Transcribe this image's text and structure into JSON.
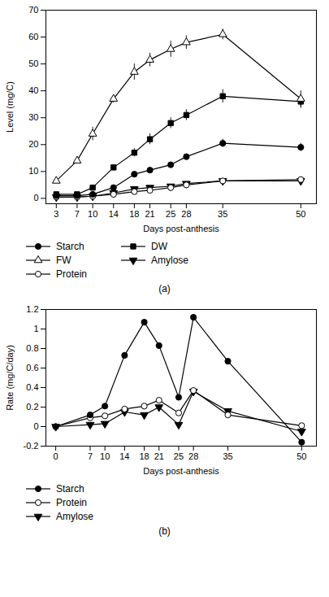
{
  "chart_data": [
    {
      "type": "line",
      "title": "(a)",
      "xlabel": "Days post-anthesis",
      "ylabel": "Level (mg/C)",
      "x": [
        3,
        7,
        10,
        14,
        18,
        21,
        25,
        28,
        35,
        50
      ],
      "series": [
        {
          "name": "Starch",
          "color": "#000000",
          "marker": "circle",
          "values": [
            1.0,
            1.0,
            1.5,
            4.0,
            9.0,
            10.5,
            12.5,
            15.5,
            20.5,
            19.0
          ],
          "errors": [
            0.3,
            0.3,
            0.3,
            0.5,
            0.5,
            0.8,
            0.8,
            1.0,
            1.5,
            1.5
          ]
        },
        {
          "name": "FW",
          "color": "#000000",
          "marker": "open_triangle_up",
          "values": [
            6.5,
            14.0,
            24.0,
            37.0,
            47.0,
            51.5,
            55.5,
            58.0,
            61.0,
            37.0
          ],
          "errors": [
            0.5,
            1.0,
            2.5,
            1.5,
            3.0,
            2.5,
            3.0,
            2.5,
            2.0,
            3.0
          ]
        },
        {
          "name": "Protein",
          "color": "#000000",
          "marker": "open_circle",
          "values": [
            0.5,
            0.5,
            0.8,
            1.5,
            2.5,
            3.0,
            4.0,
            5.0,
            6.5,
            7.0
          ],
          "errors": [
            0.2,
            0.2,
            0.2,
            0.3,
            0.3,
            0.4,
            0.4,
            0.4,
            0.5,
            0.5
          ]
        },
        {
          "name": "DW",
          "color": "#000000",
          "marker": "square",
          "values": [
            1.5,
            1.5,
            4.0,
            11.5,
            17.0,
            22.0,
            28.0,
            31.0,
            38.0,
            36.0
          ],
          "errors": [
            0.3,
            0.3,
            0.8,
            1.0,
            1.5,
            2.0,
            2.0,
            2.0,
            2.5,
            2.5
          ]
        },
        {
          "name": "Amylose",
          "color": "#000000",
          "marker": "triangle_down",
          "values": [
            0.5,
            0.5,
            0.8,
            2.0,
            3.5,
            4.0,
            4.5,
            5.5,
            6.5,
            6.5
          ],
          "errors": [
            0.2,
            0.2,
            0.2,
            0.3,
            0.3,
            0.3,
            0.3,
            0.4,
            0.5,
            0.5
          ]
        }
      ],
      "xlim": [
        1,
        53
      ],
      "ylim": [
        -2,
        70
      ],
      "xticks": [
        3,
        7,
        10,
        14,
        18,
        21,
        25,
        28,
        35,
        50
      ],
      "yticks": [
        0,
        10,
        20,
        30,
        40,
        50,
        60,
        70
      ],
      "grid": false,
      "legend": "bottom"
    },
    {
      "type": "line",
      "title": "(b)",
      "xlabel": "Days post-anthesis",
      "ylabel": "Rate (mg/C/day)",
      "x": [
        0,
        7,
        10,
        14,
        18,
        21,
        25,
        28,
        35,
        50
      ],
      "series": [
        {
          "name": "Starch",
          "color": "#000000",
          "marker": "circle",
          "values": [
            0.0,
            0.12,
            0.21,
            0.73,
            1.07,
            0.83,
            0.3,
            1.12,
            0.67,
            -0.16
          ]
        },
        {
          "name": "Protein",
          "color": "#000000",
          "marker": "open_circle",
          "values": [
            0.0,
            0.09,
            0.11,
            0.18,
            0.21,
            0.27,
            0.14,
            0.37,
            0.12,
            0.01
          ]
        },
        {
          "name": "Amylose",
          "color": "#000000",
          "marker": "triangle_down",
          "values": [
            0.0,
            0.02,
            0.03,
            0.15,
            0.12,
            0.2,
            0.02,
            0.36,
            0.16,
            -0.05
          ]
        }
      ],
      "xlim": [
        -2,
        53
      ],
      "ylim": [
        -0.2,
        1.2
      ],
      "xticks": [
        0,
        7,
        10,
        14,
        18,
        21,
        25,
        28,
        35,
        50
      ],
      "yticks": [
        -0.2,
        0,
        0.2,
        0.4,
        0.6,
        0.8,
        1.0,
        1.2
      ],
      "grid": false,
      "legend": "bottom"
    }
  ]
}
